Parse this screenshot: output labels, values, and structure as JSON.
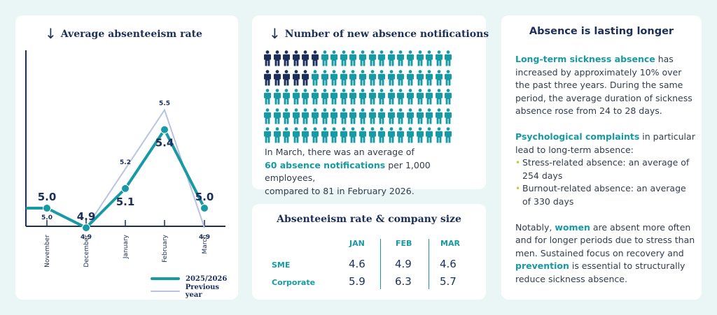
{
  "rate_card": {
    "title": "Average absenteeism rate",
    "legend": [
      {
        "label": "2025/2026",
        "color": "#179aa3"
      },
      {
        "label": "Previous year",
        "color": "#b9c3e0"
      }
    ]
  },
  "chart_data": {
    "type": "line",
    "title": "Average absenteeism rate",
    "categories": [
      "November",
      "December",
      "January",
      "February",
      "March"
    ],
    "series": [
      {
        "name": "2025/2026",
        "values": [
          5.0,
          4.9,
          5.1,
          5.4,
          5.0
        ],
        "color": "#179aa3"
      },
      {
        "name": "Previous year",
        "values": [
          5.0,
          4.9,
          5.2,
          5.5,
          4.9
        ],
        "color": "#b9c3e0"
      }
    ],
    "ylim": [
      4.0,
      6.0
    ],
    "grid": false,
    "legend_position": "bottom-right"
  },
  "notif_card": {
    "title": "Number of new absence notifications",
    "icon_rows": 5,
    "icon_cols": 20,
    "dark_per_row": [
      6,
      5,
      0,
      0,
      0
    ],
    "colors": {
      "dark": "#1c2f5a",
      "teal": "#179aa3"
    },
    "text_1": "In March, there was an average of",
    "text_highlight": "60 absence notifications",
    "text_2": " per 1,000 employees,",
    "text_3": "compared to 81 in February 2026."
  },
  "size_card": {
    "title": "Absenteeism rate & company size",
    "columns": [
      "JAN",
      "FEB",
      "MAR"
    ],
    "rows": [
      {
        "label": "SME",
        "values": [
          "4.6",
          "4.9",
          "4.6"
        ]
      },
      {
        "label": "Corporate",
        "values": [
          "5.9",
          "6.3",
          "5.7"
        ]
      }
    ]
  },
  "longer_card": {
    "title": "Absence is lasting longer",
    "p1_highlight": "Long-term sickness absence",
    "p1_text": " has increased by approximately 10% over the past three years. During the same period, the average duration of sickness absence rose from 24 to 28 days.",
    "p2_highlight": "Psychological complaints",
    "p2_text": " in particular lead to long-term absence:",
    "bullets": [
      "Stress-related absence: an average of 254 days",
      "Burnout-related absence: an average of 330 days"
    ],
    "p3_a": "Notably, ",
    "p3_hl1": "women",
    "p3_b": " are absent more often and for longer periods due to stress than men. Sustained focus on recovery and ",
    "p3_hl2": "prevention",
    "p3_c": " is essential to structurally reduce sickness absence."
  },
  "colors": {
    "accent": "#179aa3",
    "navy": "#1c2f5a",
    "light_line": "#b9c3e0",
    "bullet": "#b9cf3b",
    "background": "#e9f6f5"
  }
}
